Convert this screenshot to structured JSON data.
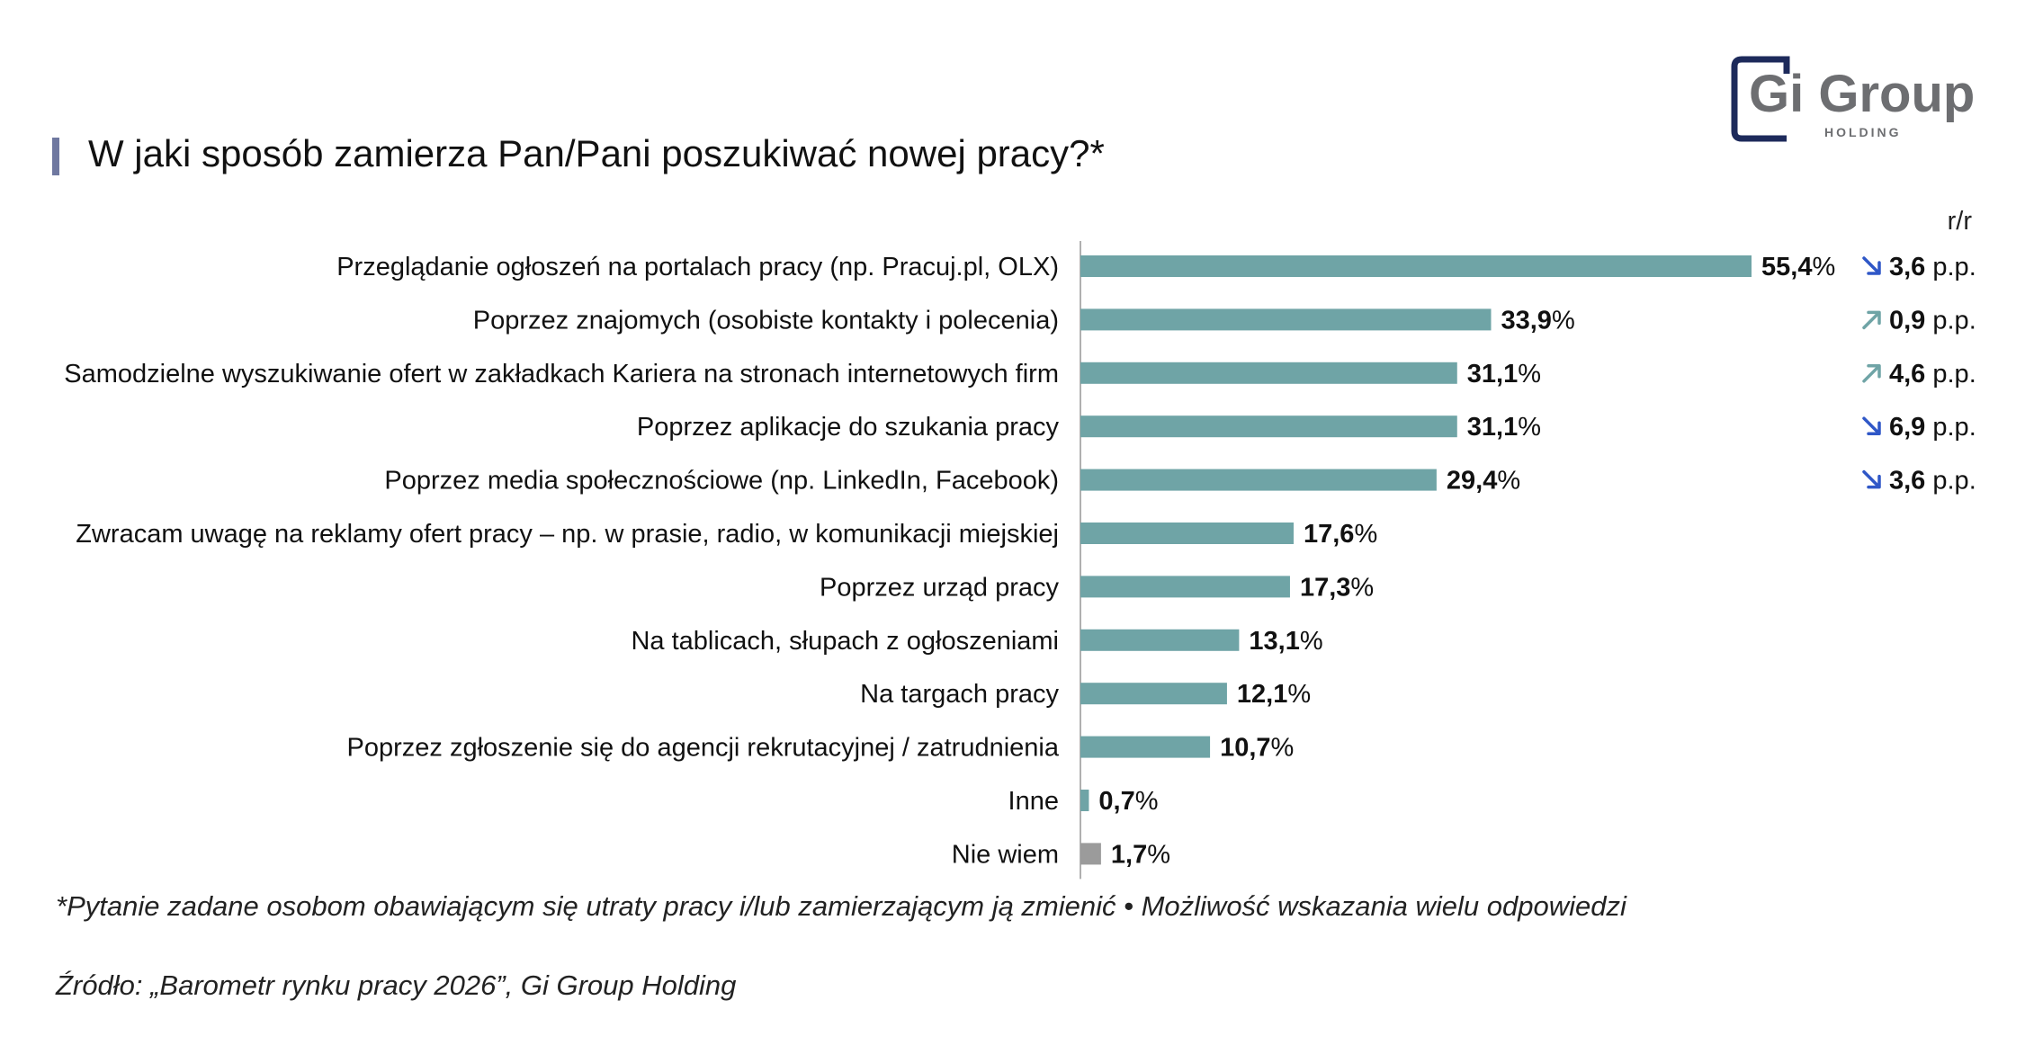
{
  "title": "W jaki sposób zamierza Pan/Pani poszukiwać nowej pracy?*",
  "logo": {
    "text_main": "Gi Group",
    "text_sub": "HOLDING"
  },
  "change_header": "r/r",
  "chart_data": {
    "type": "bar",
    "orientation": "horizontal",
    "title": "W jaki sposób zamierza Pan/Pani poszukiwać nowej pracy?*",
    "categories": [
      "Przeglądanie ogłoszeń na portalach pracy (np. Pracuj.pl, OLX)",
      "Poprzez znajomych (osobiste kontakty i polecenia)",
      "Samodzielne wyszukiwanie ofert w zakładkach Kariera na stronach internetowych firm",
      "Poprzez aplikacje do szukania pracy",
      "Poprzez media społecznościowe (np. LinkedIn, Facebook)",
      "Zwracam uwagę na reklamy ofert pracy – np. w prasie, radio, w komunikacji miejskiej",
      "Poprzez urząd pracy",
      "Na tablicach, słupach z ogłoszeniami",
      "Na targach pracy",
      "Poprzez zgłoszenie się do agencji rekrutacyjnej / zatrudnienia",
      "Inne",
      "Nie wiem"
    ],
    "values": [
      55.4,
      33.9,
      31.1,
      31.1,
      29.4,
      17.6,
      17.3,
      13.1,
      12.1,
      10.7,
      0.7,
      1.7
    ],
    "value_labels": [
      "55,4",
      "33,9",
      "31,1",
      "31,1",
      "29,4",
      "17,6",
      "17,3",
      "13,1",
      "12,1",
      "10,7",
      "0,7",
      "1,7"
    ],
    "value_unit": "%",
    "bar_colors": [
      "#6fa4a6",
      "#6fa4a6",
      "#6fa4a6",
      "#6fa4a6",
      "#6fa4a6",
      "#6fa4a6",
      "#6fa4a6",
      "#6fa4a6",
      "#6fa4a6",
      "#6fa4a6",
      "#6fa4a6",
      "#9b9b9b"
    ],
    "changes": [
      {
        "direction": "down",
        "value": "3,6",
        "unit": "p.p."
      },
      {
        "direction": "up",
        "value": "0,9",
        "unit": "p.p."
      },
      {
        "direction": "up",
        "value": "4,6",
        "unit": "p.p."
      },
      {
        "direction": "down",
        "value": "6,9",
        "unit": "p.p."
      },
      {
        "direction": "down",
        "value": "3,6",
        "unit": "p.p."
      },
      null,
      null,
      null,
      null,
      null,
      null,
      null
    ],
    "arrow_colors": {
      "down": "#2f57c7",
      "up": "#6fa4a6"
    },
    "xlim": [
      0,
      55.4
    ],
    "grid": false,
    "legend": "none"
  },
  "footnote": "*Pytanie zadane osobom obawiającym się utraty pracy i/lub zamierzającym ją zmienić • Możliwość wskazania wielu odpowiedzi",
  "source": "Źródło: „Barometr rynku pracy 2026”, Gi Group Holding",
  "colors": {
    "accent": "#6f78a0",
    "bar": "#6fa4a6",
    "bar_other": "#9b9b9b",
    "logo_navy": "#1d2a5b",
    "logo_gray": "#6d6e71"
  }
}
